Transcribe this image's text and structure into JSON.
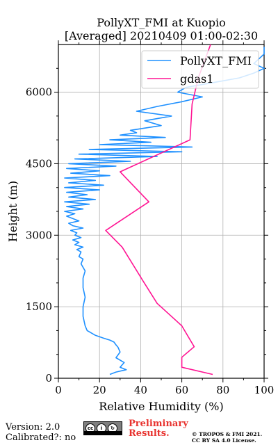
{
  "chart_data": {
    "type": "line",
    "title": "PollyXT_FMI at Kuopio",
    "subtitle": "[Averaged] 20210409 01:00-02:30",
    "xlabel": "Relative Humidity (%)",
    "ylabel": "Height (m)",
    "xlim": [
      0,
      100
    ],
    "ylim": [
      0,
      7000
    ],
    "xticks": [
      "0",
      "20",
      "40",
      "60",
      "80",
      "100"
    ],
    "yticks": [
      "0",
      "1500",
      "3000",
      "4500",
      "6000"
    ],
    "grid": true,
    "legend_position": "top-right",
    "series": [
      {
        "name": "PollyXT_FMI",
        "color": "#1e90ff",
        "x": [
          25,
          28,
          33,
          30,
          32,
          28,
          30,
          29,
          28,
          27,
          25,
          22,
          18,
          14,
          13,
          12,
          12,
          13,
          12,
          12,
          13,
          11,
          12,
          10,
          11,
          9,
          12,
          8,
          10,
          7,
          11,
          8,
          9,
          6,
          12,
          7,
          5,
          10,
          4,
          8,
          3,
          12,
          4,
          15,
          3,
          18,
          5,
          14,
          4,
          20,
          3,
          22,
          5,
          18,
          3,
          25,
          6,
          20,
          4,
          28,
          5,
          35,
          8,
          48,
          10,
          60,
          15,
          65,
          20,
          45,
          25,
          52,
          30,
          38,
          35,
          50,
          42,
          55,
          38,
          48,
          60,
          70,
          58,
          62,
          75,
          88,
          95,
          100,
          95,
          100,
          100
        ],
        "y": [
          80,
          130,
          180,
          230,
          330,
          430,
          550,
          650,
          700,
          760,
          800,
          840,
          900,
          1000,
          1100,
          1300,
          1500,
          1700,
          1900,
          2100,
          2250,
          2400,
          2500,
          2550,
          2650,
          2700,
          2750,
          2800,
          2850,
          2900,
          2950,
          3000,
          3050,
          3100,
          3150,
          3200,
          3250,
          3300,
          3400,
          3450,
          3500,
          3550,
          3600,
          3650,
          3700,
          3750,
          3800,
          3850,
          3900,
          3950,
          4000,
          4050,
          4100,
          4150,
          4200,
          4250,
          4300,
          4350,
          4400,
          4450,
          4500,
          4550,
          4600,
          4650,
          4700,
          4750,
          4800,
          4850,
          4900,
          4950,
          5000,
          5050,
          5100,
          5150,
          5200,
          5300,
          5400,
          5500,
          5600,
          5700,
          5800,
          5900,
          6000,
          6100,
          6200,
          6300,
          6400,
          6500,
          6600,
          6800,
          6950
        ]
      },
      {
        "name": "gdas1",
        "color": "#ff1493",
        "x": [
          75,
          60,
          60,
          66,
          60,
          48,
          41,
          31,
          23,
          44,
          30,
          64,
          65,
          68,
          74
        ],
        "y": [
          80,
          230,
          440,
          660,
          1100,
          1570,
          2050,
          2750,
          3100,
          3700,
          4330,
          5000,
          5750,
          6300,
          7000
        ]
      }
    ]
  },
  "footer": {
    "version": "Version: 2.0",
    "calibrated": "Calibrated?: no",
    "preliminary_line1": "Preliminary",
    "preliminary_line2": "Results.",
    "copyright_line1": "© TROPOS & FMI 2021.",
    "copyright_line2": "CC BY SA 4.0 License."
  }
}
